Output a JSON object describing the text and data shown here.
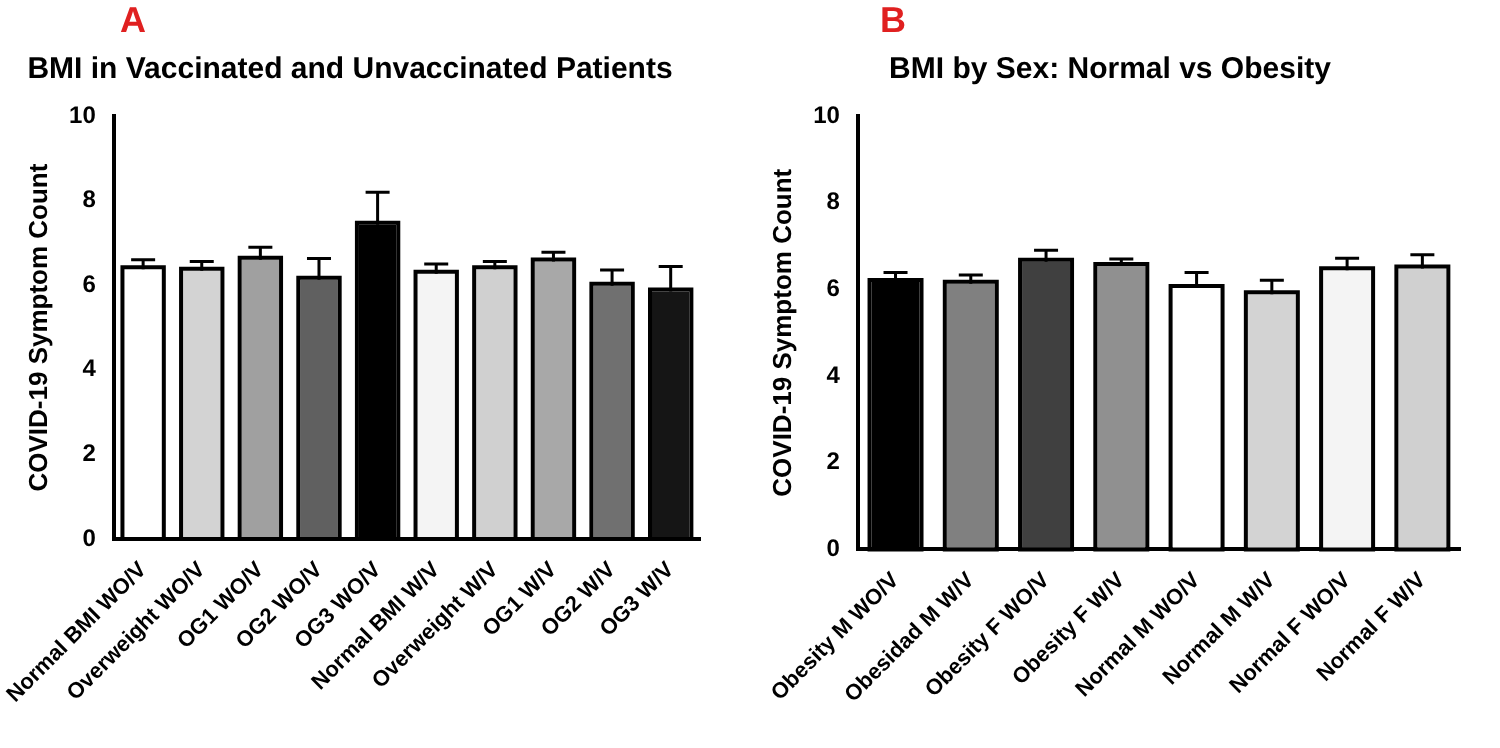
{
  "chart_data": [
    {
      "type": "bar",
      "title": "BMI in Vaccinated and Unvaccinated Patients",
      "ylabel": "COVID-19 Symptom Count",
      "annotations": [
        "A"
      ],
      "categories": [
        "Normal BMI WO/V",
        "Overweight WO/V",
        "OG1 WO/V",
        "OG2 WO/V",
        "OG3 WO/V",
        "Normal BMI W/V",
        "Overweight W/V",
        "OG1 W/V",
        "OG2 W/V",
        "OG3 W/V"
      ],
      "values": [
        6.38,
        6.34,
        6.6,
        6.13,
        7.43,
        6.27,
        6.38,
        6.56,
        5.99,
        5.85
      ],
      "errors": [
        [
          6.38,
          6.6
        ],
        [
          6.34,
          6.56
        ],
        [
          6.6,
          6.9
        ],
        [
          6.13,
          6.63
        ],
        [
          7.43,
          8.2
        ],
        [
          6.27,
          6.5
        ],
        [
          6.38,
          6.56
        ],
        [
          6.56,
          6.78
        ],
        [
          5.99,
          6.36
        ],
        [
          5.85,
          6.44
        ]
      ],
      "colors": [
        "#ffffff",
        "#d3d3d3",
        "#a0a0a0",
        "#606060",
        "#000000",
        "#f4f4f4",
        "#d0d0d0",
        "#a8a8a8",
        "#707070",
        "#151515"
      ],
      "ylim": [
        0,
        10
      ],
      "yticks": [
        0,
        2,
        4,
        6,
        8,
        10
      ],
      "grid": false,
      "legend": false
    },
    {
      "type": "bar",
      "title": "BMI by Sex: Normal vs Obesity",
      "ylabel": "COVID-19 Symptom Count",
      "annotations": [
        "B"
      ],
      "categories": [
        "Obesity M WO/V",
        "Obesidad M W/V",
        "Obesity F WO/V",
        "Obesity F W/V",
        "Normal M WO/V",
        "Normal M W/V",
        "Normal F WO/V",
        "Normal F W/V"
      ],
      "values": [
        6.17,
        6.13,
        6.64,
        6.54,
        6.03,
        5.89,
        6.44,
        6.48
      ],
      "errors": [
        [
          6.17,
          6.39
        ],
        [
          6.13,
          6.33
        ],
        [
          6.64,
          6.9
        ],
        [
          6.54,
          6.7
        ],
        [
          6.03,
          6.39
        ],
        [
          5.89,
          6.21
        ],
        [
          6.44,
          6.72
        ],
        [
          6.48,
          6.8
        ]
      ],
      "colors": [
        "#000000",
        "#808080",
        "#404040",
        "#909090",
        "#ffffff",
        "#d3d3d3",
        "#f4f4f4",
        "#d0d0d0"
      ],
      "ylim": [
        0,
        10
      ],
      "yticks": [
        0,
        2,
        4,
        6,
        8,
        10
      ],
      "grid": false,
      "legend": false
    }
  ]
}
